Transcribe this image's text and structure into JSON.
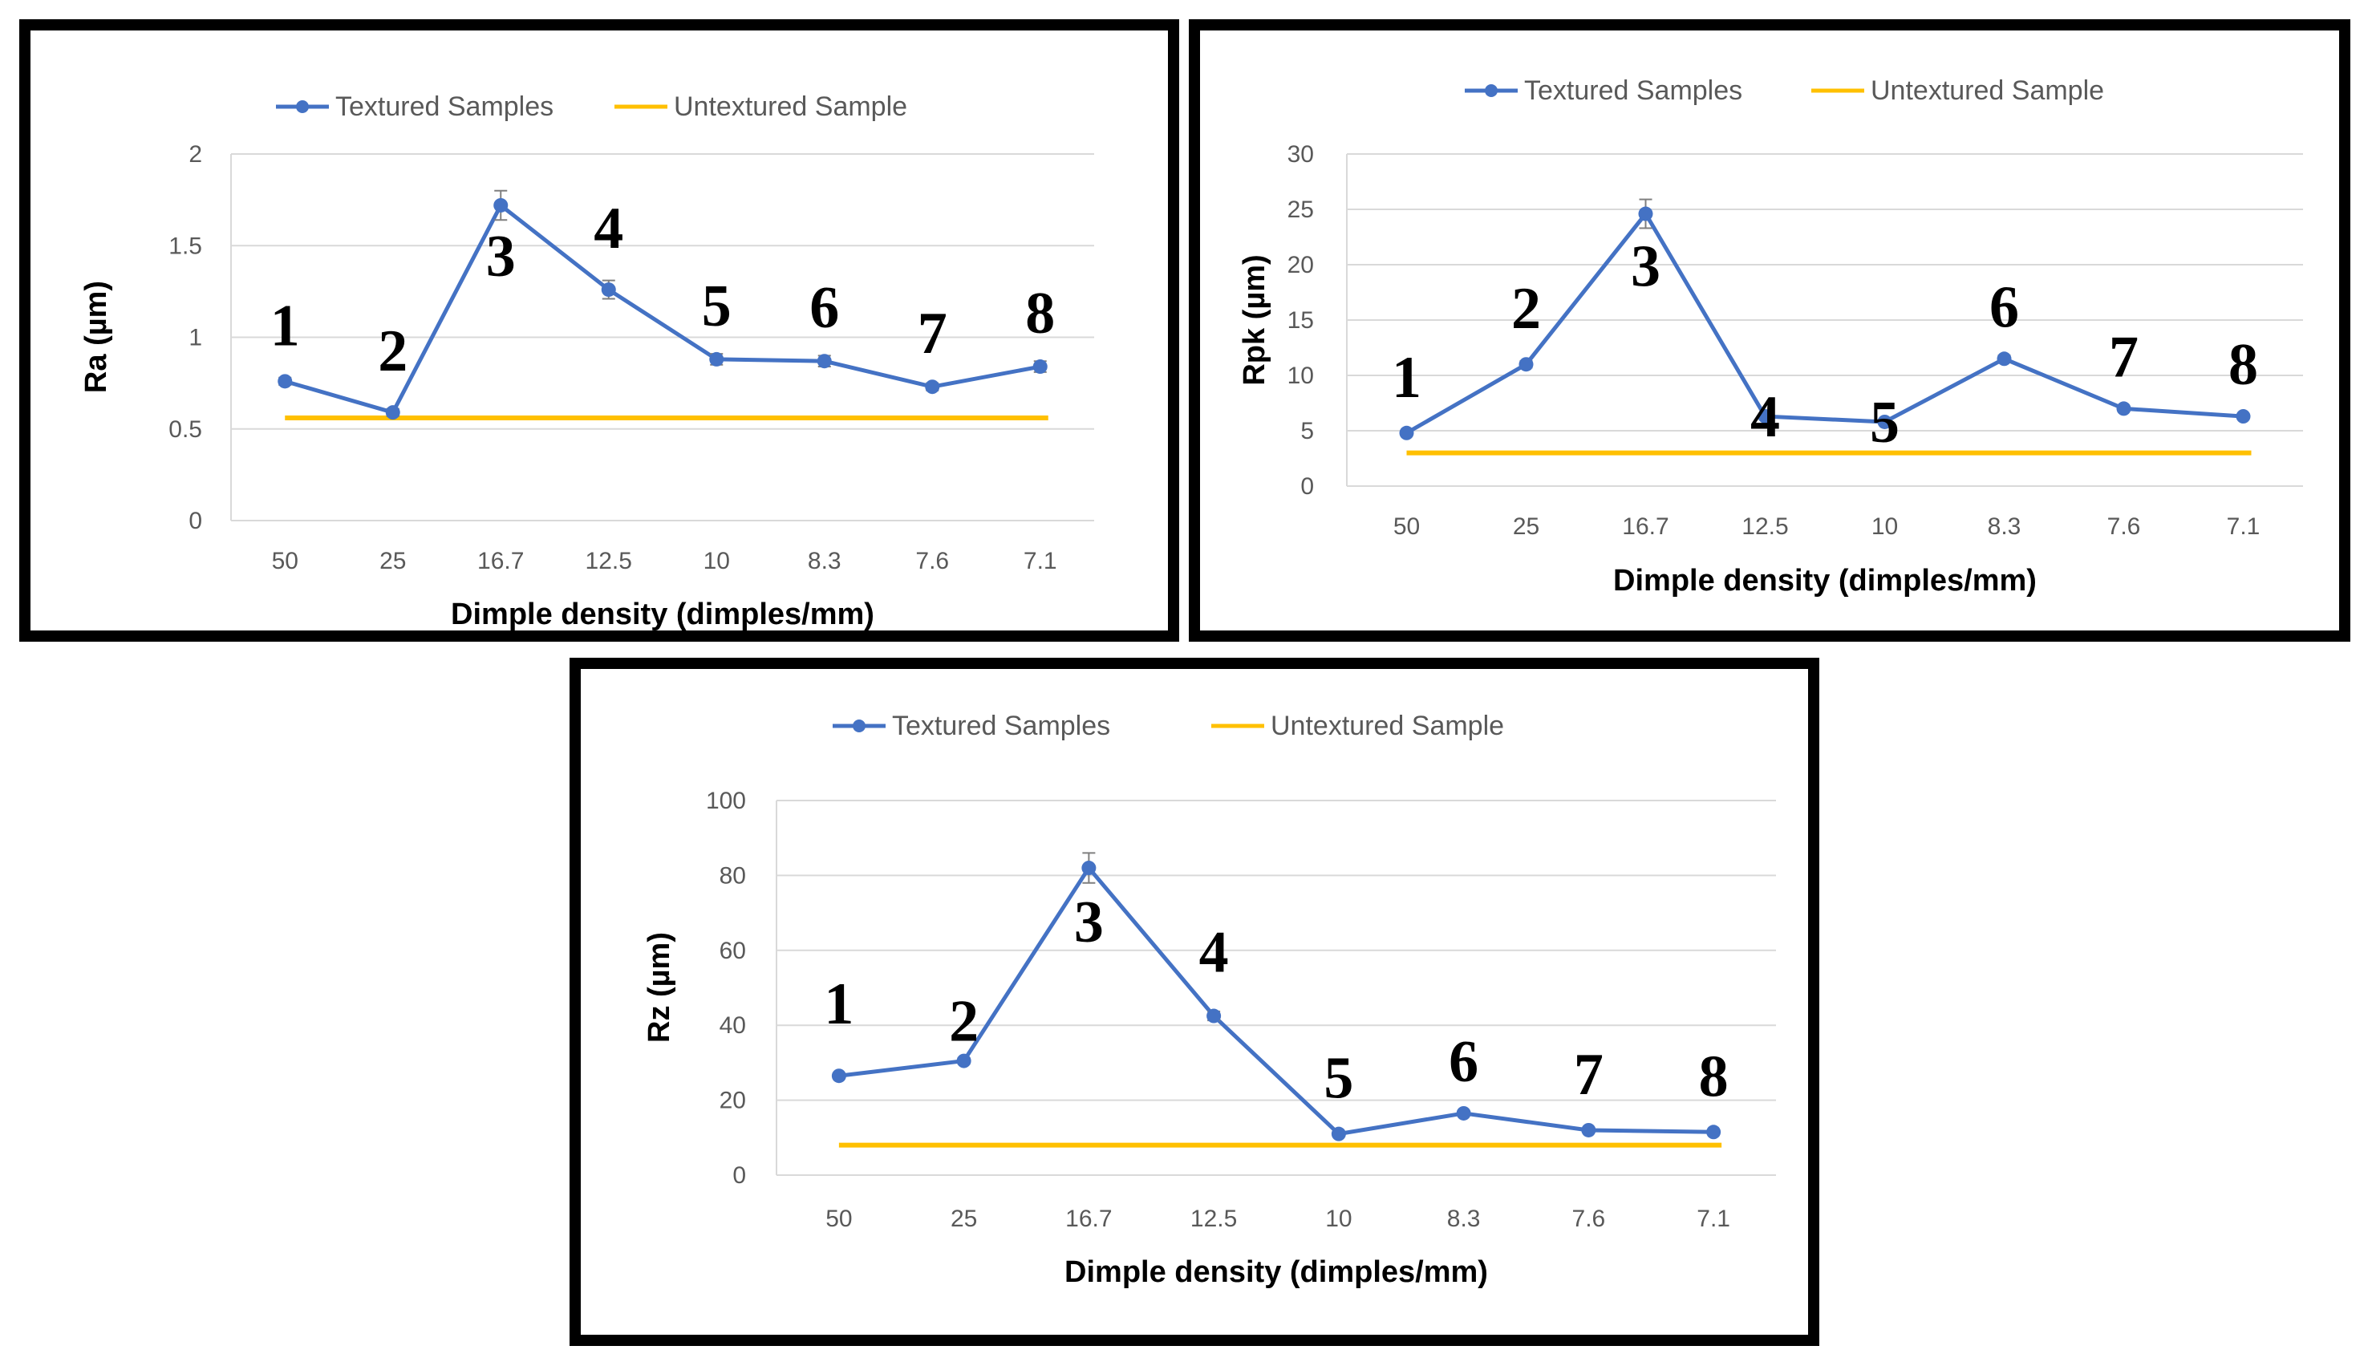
{
  "colors": {
    "textured": "#4472C4",
    "untextured": "#FFC000",
    "grid": "#D9D9D9",
    "tick_text": "#595959",
    "errorbar": "#7F7F7F"
  },
  "chart_data": [
    {
      "type": "line",
      "ylabel": "Ra (µm)",
      "xlabel": "Dimple density (dimples/mm)",
      "categories": [
        "50",
        "25",
        "16.7",
        "12.5",
        "10",
        "8.3",
        "7.6",
        "7.1"
      ],
      "yticks": [
        "0",
        "0.5",
        "1",
        "1.5",
        "2"
      ],
      "ylim": [
        0,
        2
      ],
      "series": [
        {
          "name": "Textured Samples",
          "values": [
            0.76,
            0.59,
            1.72,
            1.26,
            0.88,
            0.87,
            0.73,
            0.84
          ],
          "errors": [
            0.02,
            0.02,
            0.08,
            0.05,
            0.03,
            0.03,
            0.02,
            0.03
          ]
        },
        {
          "name": "Untextured Sample",
          "values": [
            0.56,
            0.56,
            0.56,
            0.56,
            0.56,
            0.56,
            0.56,
            0.56
          ]
        }
      ],
      "point_labels": [
        "1",
        "2",
        "3",
        "4",
        "5",
        "6",
        "7",
        "8"
      ]
    },
    {
      "type": "line",
      "ylabel": "Rpk (µm)",
      "xlabel": "Dimple density (dimples/mm)",
      "categories": [
        "50",
        "25",
        "16.7",
        "12.5",
        "10",
        "8.3",
        "7.6",
        "7.1"
      ],
      "yticks": [
        "0",
        "5",
        "10",
        "15",
        "20",
        "25",
        "30"
      ],
      "ylim": [
        0,
        30
      ],
      "series": [
        {
          "name": "Textured Samples",
          "values": [
            4.8,
            11,
            24.6,
            6.3,
            5.8,
            11.5,
            7,
            6.3
          ],
          "errors": [
            0.2,
            0.3,
            1.3,
            0.3,
            0.2,
            0.3,
            0.2,
            0.2
          ]
        },
        {
          "name": "Untextured Sample",
          "values": [
            3,
            3,
            3,
            3,
            3,
            3,
            3,
            3
          ]
        }
      ],
      "point_labels": [
        "1",
        "2",
        "3",
        "4",
        "5",
        "6",
        "7",
        "8"
      ]
    },
    {
      "type": "line",
      "ylabel": "Rz (µm)",
      "xlabel": "Dimple density (dimples/mm)",
      "categories": [
        "50",
        "25",
        "16.7",
        "12.5",
        "10",
        "8.3",
        "7.6",
        "7.1"
      ],
      "yticks": [
        "0",
        "20",
        "40",
        "60",
        "80",
        "100"
      ],
      "ylim": [
        0,
        100
      ],
      "series": [
        {
          "name": "Textured Samples",
          "values": [
            26.5,
            30.5,
            82,
            42.5,
            11,
            16.5,
            12,
            11.5
          ],
          "errors": [
            0.6,
            0.8,
            4,
            1.2,
            0.5,
            0.5,
            0.4,
            0.4
          ]
        },
        {
          "name": "Untextured Sample",
          "values": [
            8,
            8,
            8,
            8,
            8,
            8,
            8,
            8
          ]
        }
      ],
      "point_labels": [
        "1",
        "2",
        "3",
        "4",
        "5",
        "6",
        "7",
        "8"
      ]
    }
  ]
}
